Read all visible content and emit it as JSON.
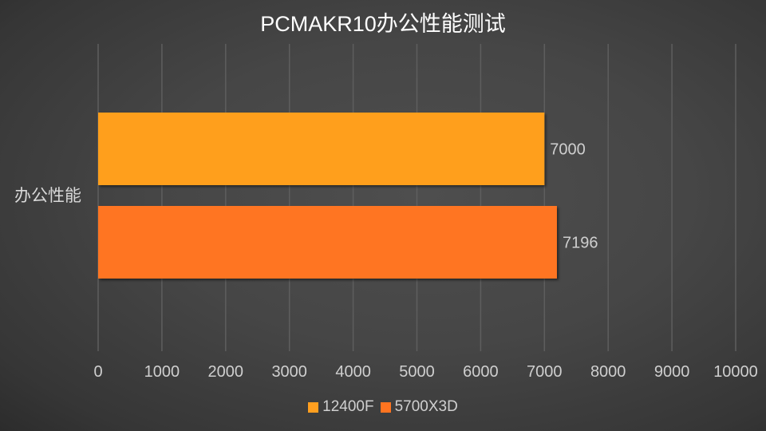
{
  "chart_data": {
    "type": "bar",
    "orientation": "horizontal",
    "title": "PCMAKR10办公性能测试",
    "categories": [
      "办公性能"
    ],
    "series": [
      {
        "name": "12400F",
        "values": [
          7000
        ],
        "color": "#ff9f1f"
      },
      {
        "name": "5700X3D",
        "values": [
          7196
        ],
        "color": "#ff7420"
      }
    ],
    "xlim": [
      0,
      10000
    ],
    "xticks": [
      "0",
      "1000",
      "2000",
      "3000",
      "4000",
      "5000",
      "6000",
      "7000",
      "8000",
      "9000",
      "10000"
    ],
    "grid": true,
    "legend_position": "bottom",
    "data_labels": true
  }
}
